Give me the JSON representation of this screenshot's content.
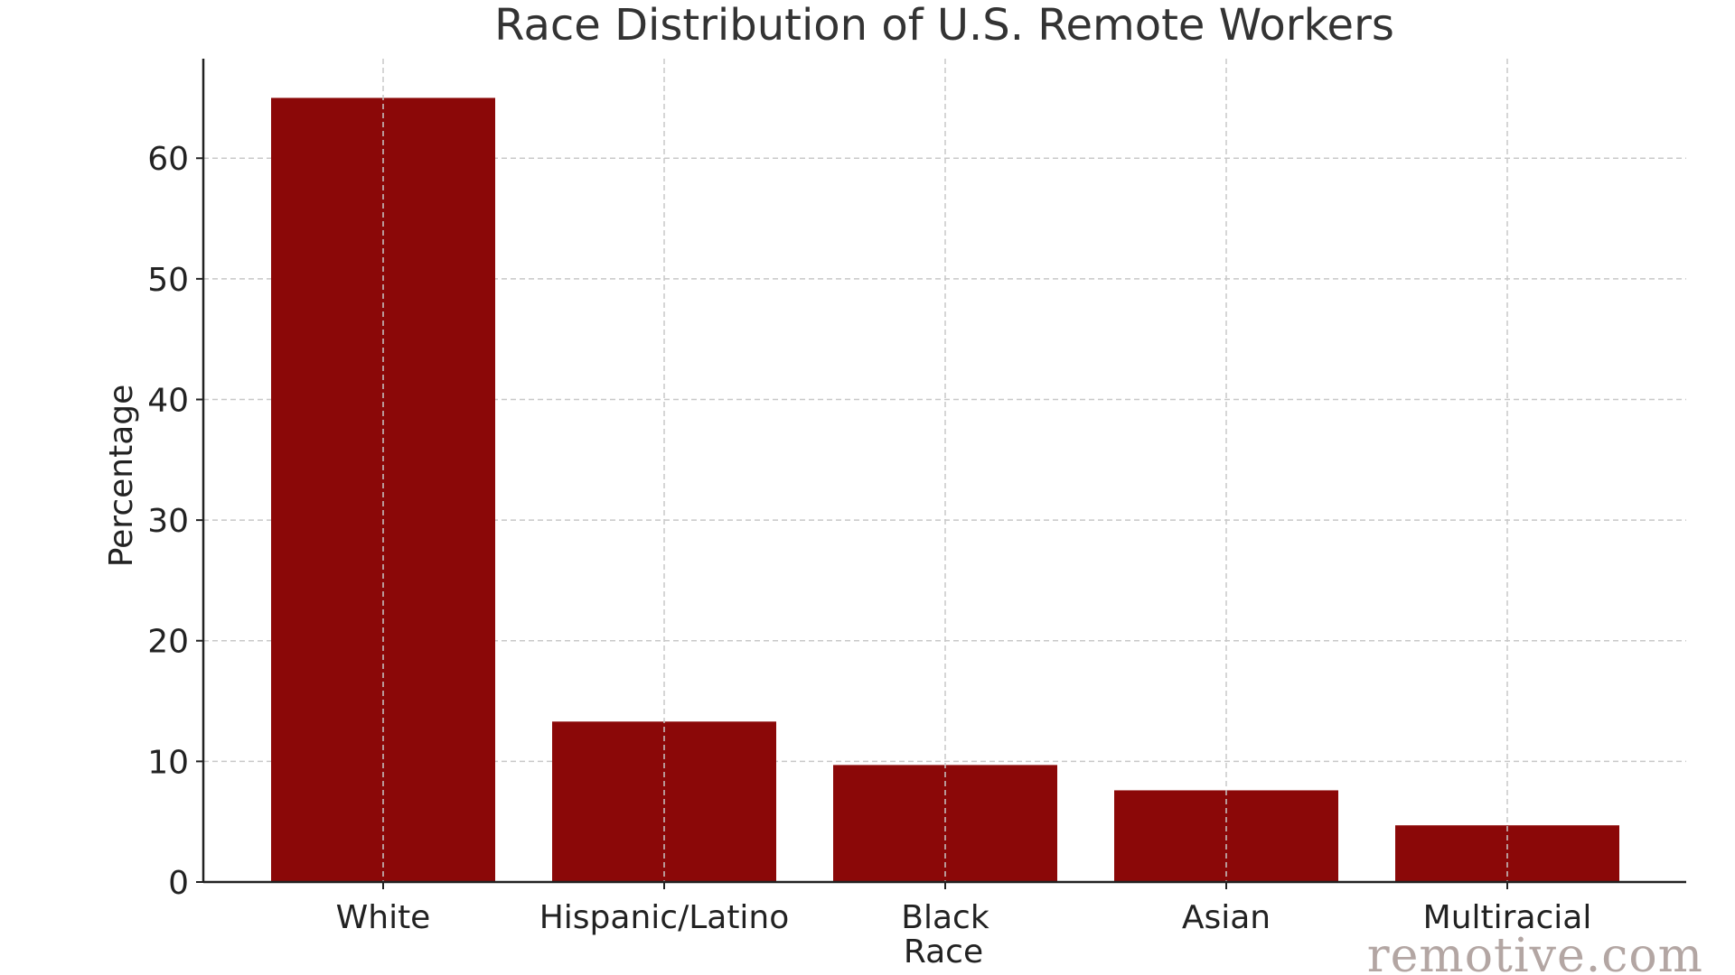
{
  "chart_data": {
    "type": "bar",
    "title": "Race Distribution of U.S. Remote Workers",
    "xlabel": "Race",
    "ylabel": "Percentage",
    "categories": [
      "White",
      "Hispanic/Latino",
      "Black",
      "Asian",
      "Multiracial"
    ],
    "values": [
      65,
      13.3,
      9.7,
      7.6,
      4.7
    ],
    "ylim": [
      0,
      68.25
    ],
    "yticks": [
      0,
      10,
      20,
      30,
      40,
      50,
      60
    ],
    "grid": true,
    "bar_color": "#8b0808"
  },
  "watermark": "remotive.com"
}
